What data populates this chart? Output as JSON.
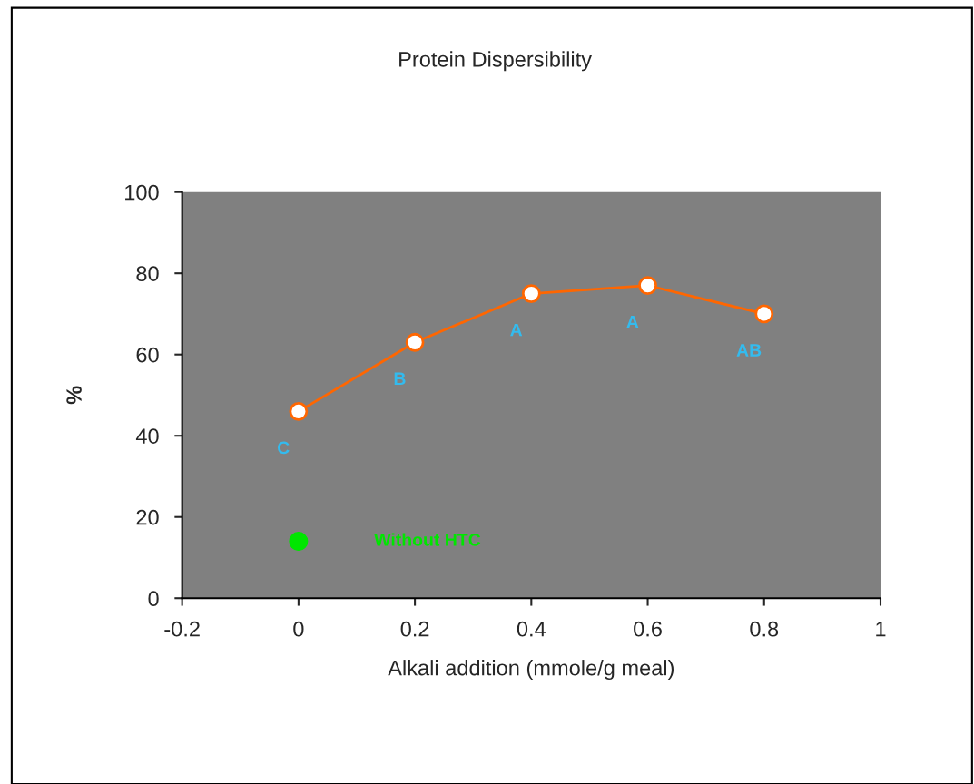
{
  "chart_data": {
    "type": "line",
    "title": "Protein Dispersibility",
    "xlabel": "Alkali addition (mmole/g meal)",
    "ylabel": "%",
    "xlim": [
      -0.2,
      1
    ],
    "xticks": [
      {
        "value": -0.2,
        "label": "-0.2"
      },
      0,
      0.2,
      0.4,
      0.6,
      0.8,
      1
    ],
    "ylim": [
      0,
      100
    ],
    "yticks": [
      0,
      20,
      40,
      60,
      80,
      100
    ],
    "series": [
      {
        "color": "#ff6600",
        "x": [
          0,
          0.2,
          0.4,
          0.6,
          0.8
        ],
        "values": [
          46,
          63,
          75,
          77,
          70
        ],
        "marker": "circle",
        "line_style": "solid"
      },
      {
        "type": "scatter",
        "color": "#00e600",
        "x": [
          0
        ],
        "values": [
          14
        ],
        "marker": "circle"
      }
    ],
    "annotations": [
      {
        "text": "C",
        "x": 0,
        "y": 46
      },
      {
        "text": "B",
        "x": 0.2,
        "y": 63
      },
      {
        "text": "A",
        "x": 0.4,
        "y": 75
      },
      {
        "text": "A",
        "x": 0.6,
        "y": 77
      },
      {
        "text": "AB",
        "x": 0.8,
        "y": 70
      },
      "Without HTC"
    ],
    "grid": false,
    "legend": false
  }
}
